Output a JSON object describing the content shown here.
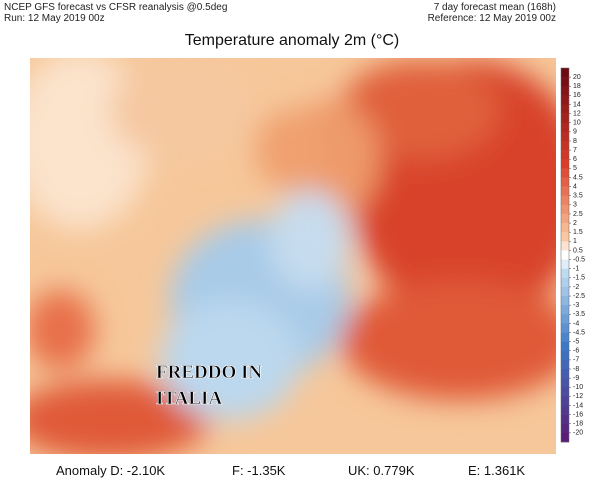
{
  "header": {
    "left": [
      "NCEP GFS forecast vs CFSR reanalysis @0.5deg",
      "Run: 12 May 2019 00z"
    ],
    "right": [
      "7 day forecast mean (168h)",
      "Reference: 12 May 2019 00z"
    ]
  },
  "title": "Temperature anomaly 2m (°C)",
  "colorbar": {
    "ticks": [
      20,
      18,
      16,
      14,
      12,
      10,
      9,
      8,
      7,
      6,
      5,
      4.5,
      4,
      3.5,
      3,
      2.5,
      2,
      1.5,
      1,
      0.5,
      -0.5,
      -1,
      -1.5,
      -2,
      -2.5,
      -3,
      -3.5,
      -4,
      -4.5,
      -5,
      -6,
      -7,
      -8,
      -9,
      -10,
      -12,
      -14,
      -16,
      -18,
      -20
    ]
  },
  "annotation": [
    "FREDDO IN",
    "ITALIA"
  ],
  "stats": [
    "Anomaly D: -2.10K",
    "F: -1.35K",
    "UK: 0.779K",
    "E: 1.361K"
  ]
}
